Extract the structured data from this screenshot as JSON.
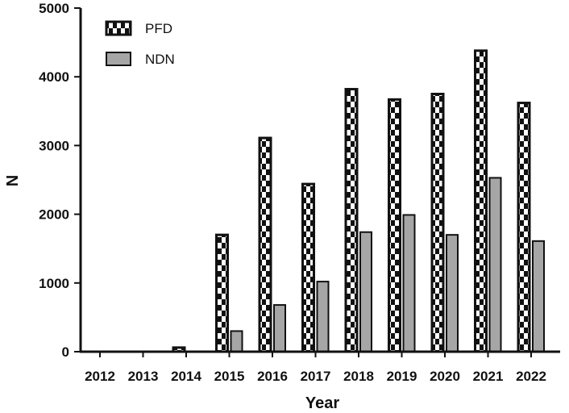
{
  "chart_data": {
    "type": "bar",
    "categories": [
      "2012",
      "2013",
      "2014",
      "2015",
      "2016",
      "2017",
      "2018",
      "2019",
      "2020",
      "2021",
      "2022"
    ],
    "series": [
      {
        "name": "PFD",
        "values": [
          0,
          0,
          60,
          1700,
          3110,
          2440,
          3820,
          3670,
          3750,
          4380,
          3620
        ],
        "style": "checkered",
        "color": "#111111"
      },
      {
        "name": "NDN",
        "values": [
          0,
          0,
          0,
          300,
          680,
          1020,
          1740,
          1990,
          1700,
          2530,
          1610
        ],
        "style": "solid",
        "color": "#a6a6a6"
      }
    ],
    "xlabel": "Year",
    "ylabel": "N",
    "ylim": [
      0,
      5000
    ],
    "yticks": [
      "0",
      "1000",
      "2000",
      "3000",
      "4000",
      "5000"
    ],
    "legend_position": "top-left",
    "grid": false
  }
}
